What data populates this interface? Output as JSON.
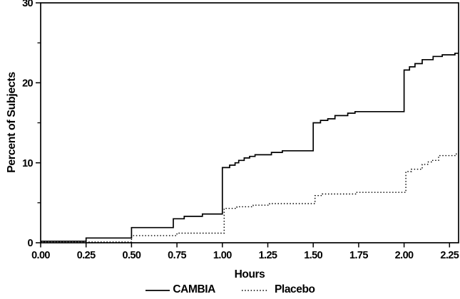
{
  "chart_data": {
    "type": "line",
    "line_mode": "step-post",
    "title": "",
    "xlabel": "Hours",
    "ylabel": "Percent of Subjects",
    "xlim": [
      0,
      2.3
    ],
    "ylim": [
      0,
      30
    ],
    "grid": false,
    "legend_position": "bottom-center",
    "background_color": "#ffffff",
    "axis_color": "#000000",
    "x_ticks": [
      {
        "value": 0.0,
        "label": "0.00"
      },
      {
        "value": 0.25,
        "label": "0.25"
      },
      {
        "value": 0.5,
        "label": "0.50"
      },
      {
        "value": 0.75,
        "label": "0.75"
      },
      {
        "value": 1.0,
        "label": "1.00"
      },
      {
        "value": 1.25,
        "label": "1.25"
      },
      {
        "value": 1.5,
        "label": "1.50"
      },
      {
        "value": 1.75,
        "label": "1.75"
      },
      {
        "value": 2.0,
        "label": "2.00"
      },
      {
        "value": 2.25,
        "label": "2.25"
      }
    ],
    "y_ticks": [
      {
        "value": 0,
        "label": "0"
      },
      {
        "value": 10,
        "label": "10"
      },
      {
        "value": 20,
        "label": "20"
      },
      {
        "value": 30,
        "label": "30"
      }
    ],
    "y_minor_ticks": [
      5,
      15,
      25
    ],
    "series": [
      {
        "name": "CAMBIA",
        "line_style": "solid",
        "color": "#000000",
        "end_x": 2.3,
        "points": [
          [
            0.0,
            0.2
          ],
          [
            0.25,
            0.6
          ],
          [
            0.5,
            1.9
          ],
          [
            0.73,
            3.0
          ],
          [
            0.79,
            3.3
          ],
          [
            0.89,
            3.6
          ],
          [
            1.0,
            9.4
          ],
          [
            1.04,
            9.7
          ],
          [
            1.07,
            10.0
          ],
          [
            1.09,
            10.3
          ],
          [
            1.12,
            10.6
          ],
          [
            1.15,
            10.8
          ],
          [
            1.18,
            11.0
          ],
          [
            1.27,
            11.3
          ],
          [
            1.33,
            11.5
          ],
          [
            1.5,
            15.0
          ],
          [
            1.54,
            15.3
          ],
          [
            1.58,
            15.5
          ],
          [
            1.62,
            15.9
          ],
          [
            1.69,
            16.2
          ],
          [
            1.73,
            16.4
          ],
          [
            2.0,
            21.6
          ],
          [
            2.03,
            22.0
          ],
          [
            2.06,
            22.4
          ],
          [
            2.1,
            22.9
          ],
          [
            2.16,
            23.3
          ],
          [
            2.21,
            23.5
          ],
          [
            2.28,
            23.7
          ]
        ]
      },
      {
        "name": "Placebo",
        "line_style": "dotted",
        "color": "#000000",
        "end_x": 2.3,
        "points": [
          [
            0.0,
            0.1
          ],
          [
            0.5,
            0.9
          ],
          [
            0.75,
            1.2
          ],
          [
            1.01,
            4.3
          ],
          [
            1.08,
            4.5
          ],
          [
            1.17,
            4.7
          ],
          [
            1.26,
            4.9
          ],
          [
            1.51,
            5.9
          ],
          [
            1.55,
            6.1
          ],
          [
            1.74,
            6.3
          ],
          [
            2.01,
            8.9
          ],
          [
            2.04,
            9.2
          ],
          [
            2.1,
            9.8
          ],
          [
            2.13,
            10.1
          ],
          [
            2.15,
            10.3
          ],
          [
            2.19,
            10.9
          ],
          [
            2.28,
            11.1
          ]
        ]
      }
    ]
  }
}
